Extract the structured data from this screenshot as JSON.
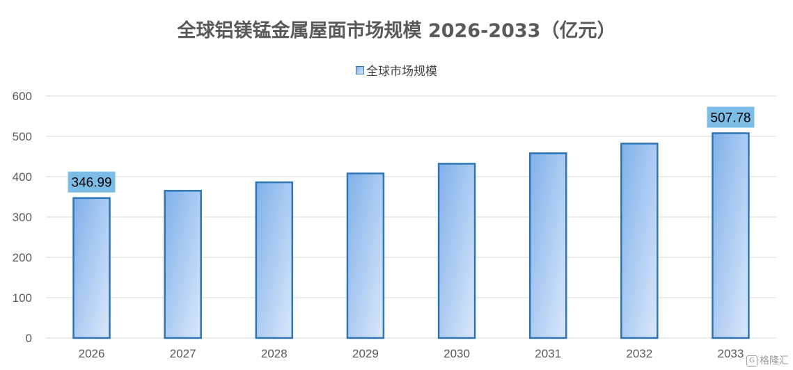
{
  "chart_data": {
    "type": "bar",
    "title": "全球铝镁锰金属屋面市场规模 2026-2033（亿元）",
    "xlabel": "",
    "ylabel": "",
    "categories": [
      "2026",
      "2027",
      "2028",
      "2029",
      "2030",
      "2031",
      "2032",
      "2033"
    ],
    "series": [
      {
        "name": "全球市场规模",
        "values": [
          346.99,
          365,
          386,
          408,
          432,
          458,
          482,
          507.78
        ]
      }
    ],
    "data_labels": [
      {
        "category": "2026",
        "text": "346.99"
      },
      {
        "category": "2033",
        "text": "507.78"
      }
    ],
    "ylim": [
      0,
      600
    ],
    "yticks": [
      0,
      100,
      200,
      300,
      400,
      500,
      600
    ],
    "grid": true,
    "legend_position": "top-center",
    "colors": {
      "bar_fill_start": "#7fb0ea",
      "bar_fill_end": "#dbe8fa",
      "bar_border": "#2e75b6",
      "label_bg": "#7bbde6",
      "grid": "#d9d9d9",
      "axis_text": "#595959"
    }
  },
  "watermark": {
    "text": "格隆汇",
    "icon": "gelonghui-logo-icon"
  }
}
